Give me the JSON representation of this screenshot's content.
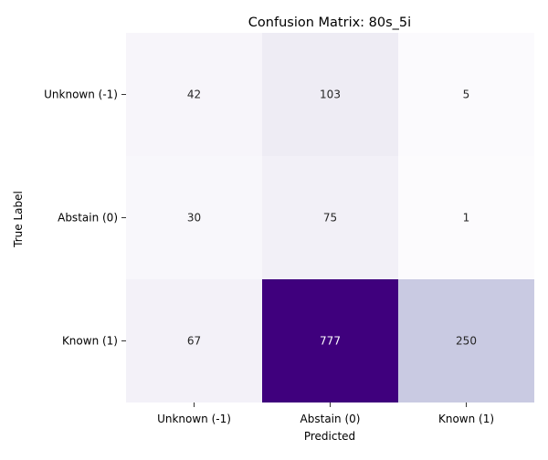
{
  "chart_data": {
    "type": "heatmap",
    "title": "Confusion Matrix: 80s_5i",
    "xlabel": "Predicted",
    "ylabel": "True Label",
    "x_categories": [
      "Unknown (-1)",
      "Abstain (0)",
      "Known (1)"
    ],
    "y_categories": [
      "Unknown (-1)",
      "Abstain (0)",
      "Known (1)"
    ],
    "values": [
      [
        42,
        103,
        5
      ],
      [
        30,
        75,
        1
      ],
      [
        67,
        777,
        250
      ]
    ],
    "colormap": "Purples",
    "value_range": [
      1,
      777
    ],
    "colorbar": false
  }
}
